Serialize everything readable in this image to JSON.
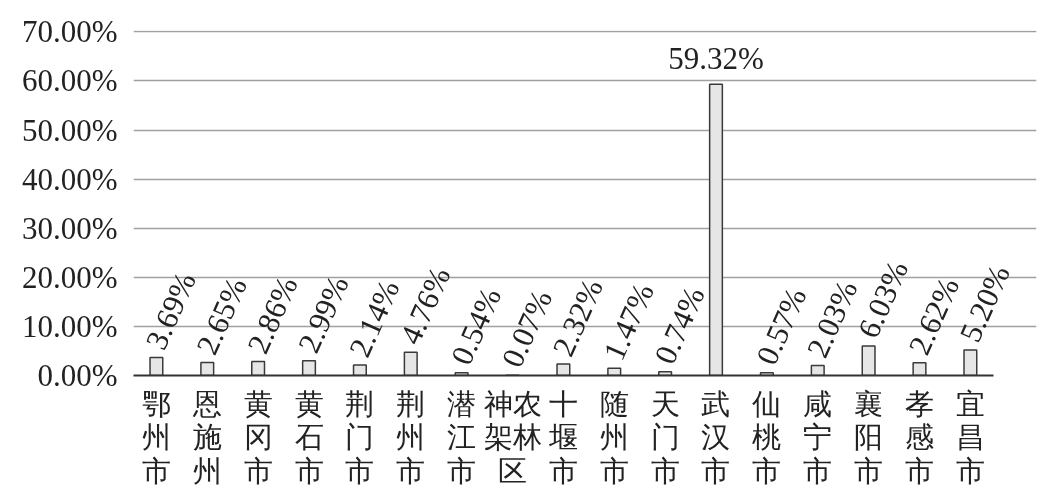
{
  "chart_data": {
    "type": "bar",
    "categories": [
      "鄂州市",
      "恩施州",
      "黄冈市",
      "黄石市",
      "荆门市",
      "荆州市",
      "潜江市",
      "神农架林区",
      "十堰市",
      "随州市",
      "天门市",
      "武汉市",
      "仙桃市",
      "咸宁市",
      "襄阳市",
      "孝感市",
      "宜昌市"
    ],
    "values": [
      3.69,
      2.65,
      2.86,
      2.99,
      2.14,
      4.76,
      0.54,
      0.07,
      2.32,
      1.47,
      0.74,
      59.32,
      0.57,
      2.03,
      6.03,
      2.62,
      5.2
    ],
    "value_labels": [
      "3.69%",
      "2.65%",
      "2.86%",
      "2.99%",
      "2.14%",
      "4.76%",
      "0.54%",
      "0.07%",
      "2.32%",
      "1.47%",
      "0.74%",
      "59.32%",
      "0.57%",
      "2.03%",
      "6.03%",
      "2.62%",
      "5.20%"
    ],
    "color": "#e6e6e6",
    "ylim": [
      0,
      70
    ],
    "yticks": [
      {
        "value": 0,
        "label": "0.00%"
      },
      {
        "value": 10,
        "label": "10.00%"
      },
      {
        "value": 20,
        "label": "20.00%"
      },
      {
        "value": 30,
        "label": "30.00%"
      },
      {
        "value": 40,
        "label": "40.00%"
      },
      {
        "value": 50,
        "label": "50.00%"
      },
      {
        "value": 60,
        "label": "60.00%"
      },
      {
        "value": 70,
        "label": "70.00%"
      }
    ],
    "grid": "y"
  }
}
